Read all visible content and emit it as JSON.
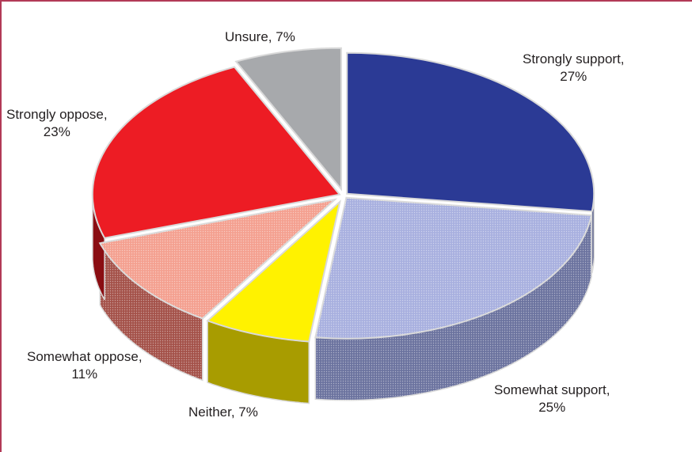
{
  "chart_data": {
    "type": "pie",
    "style": "3d-exploded-pie",
    "title": "",
    "slices": [
      {
        "label": "Strongly support",
        "value": 27,
        "text": "Strongly support,",
        "pct": "27%",
        "color": "#2b3a95",
        "side": "#1a2466",
        "pattern": false
      },
      {
        "label": "Somewhat support",
        "value": 25,
        "text": "Somewhat support,",
        "pct": "25%",
        "color": "#a8b0df",
        "side": "#6c739f",
        "pattern": true
      },
      {
        "label": "Neither",
        "value": 7,
        "text": "Neither, 7%",
        "pct": "",
        "color": "#fff200",
        "side": "#a89c00",
        "pattern": false
      },
      {
        "label": "Somewhat oppose",
        "value": 11,
        "text": "Somewhat oppose,",
        "pct": "11%",
        "color": "#f4a090",
        "side": "#a4524a",
        "pattern": true
      },
      {
        "label": "Strongly oppose",
        "value": 23,
        "text": "Strongly oppose,",
        "pct": "23%",
        "color": "#ed1c24",
        "side": "#8a0d12",
        "pattern": false
      },
      {
        "label": "Unsure",
        "value": 7,
        "text": "Unsure, 7%",
        "pct": "",
        "color": "#a7a9ac",
        "side": "#6d6e70",
        "pattern": false
      }
    ]
  }
}
